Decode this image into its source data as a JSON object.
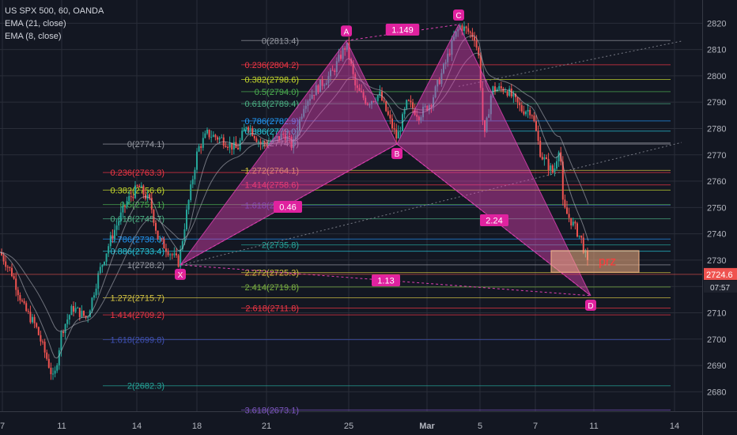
{
  "legend": {
    "title": "US SPX 500, 60, OANDA",
    "ema21": "EMA (21, close)",
    "ema8": "EMA (8, close)"
  },
  "colors": {
    "background": "#131722",
    "grid": "#2a2e39",
    "pattern_fill": "#e040b4",
    "pattern_label_bg": "#e0229f",
    "up_candle": "#26a69a",
    "down_candle": "#ef5350",
    "prz_box": "#f4b183",
    "prz_text": "#ff3b3b",
    "axis_text": "#b2b5be"
  },
  "last_price": {
    "value": "2724.6",
    "countdown": "07:57"
  },
  "prz_label": "prz",
  "chart_data": {
    "type": "candlestick",
    "title": "US SPX 500, 60, OANDA",
    "xlabel": "",
    "ylabel": "",
    "ylim": [
      2672,
      2824
    ],
    "x_ticks": [
      "7",
      "11",
      "14",
      "18",
      "21",
      "25",
      "Mar",
      "5",
      "7",
      "11",
      "14"
    ],
    "y_ticks": [
      2680,
      2690,
      2700,
      2710,
      2720,
      2730,
      2740,
      2750,
      2760,
      2770,
      2780,
      2790,
      2800,
      2810,
      2820
    ],
    "series": [
      {
        "name": "EMA (21, close)"
      },
      {
        "name": "EMA (8, close)"
      }
    ],
    "harmonic_pattern": {
      "points": [
        {
          "label": "X",
          "price": 2728.2
        },
        {
          "label": "A",
          "price": 2813.4
        },
        {
          "label": "B",
          "price": 2774.1
        },
        {
          "label": "C",
          "price": 2819.5
        },
        {
          "label": "D",
          "price": 2716.5
        }
      ],
      "ratios": [
        {
          "label": "1.149"
        },
        {
          "label": "0.46"
        },
        {
          "label": "2.24"
        },
        {
          "label": "1.13"
        }
      ]
    },
    "fib_sets": [
      {
        "name": "upper-fib",
        "levels": [
          {
            "text": "0(2813.4)",
            "price": 2813.4,
            "color": "#9598a1"
          },
          {
            "text": "0.236(2804.2)",
            "price": 2804.2,
            "color": "#f23645"
          },
          {
            "text": "0.382(2798.6)",
            "price": 2798.6,
            "color": "#c5d82d"
          },
          {
            "text": "0.5(2794.0)",
            "price": 2794.0,
            "color": "#4caf50"
          },
          {
            "text": "0.618(2789.4)",
            "price": 2789.4,
            "color": "#4caf83"
          },
          {
            "text": "0.786(2782.9)",
            "price": 2782.9,
            "color": "#2196f3"
          },
          {
            "text": "0.886(2779.0)",
            "price": 2779.0,
            "color": "#26c6da"
          },
          {
            "text": "1(2774.5)",
            "price": 2774.5,
            "color": "#9598a1"
          },
          {
            "text": "1.272(2764.1)",
            "price": 2764.1,
            "color": "#d4c341"
          },
          {
            "text": "1.414(2758.6)",
            "price": 2758.6,
            "color": "#f23645"
          },
          {
            "text": "1.618(2750.8)",
            "price": 2750.8,
            "color": "#3f51b5"
          },
          {
            "text": "2(2735.8)",
            "price": 2735.8,
            "color": "#26a69a"
          },
          {
            "text": "2.272(2725.3)",
            "price": 2725.3,
            "color": "#d4c341"
          },
          {
            "text": "2.414(2719.8)",
            "price": 2719.8,
            "color": "#7cb342"
          },
          {
            "text": "2.618(2711.8)",
            "price": 2711.8,
            "color": "#f23645"
          },
          {
            "text": "3.618(2673.1)",
            "price": 2673.1,
            "color": "#7e57c2"
          }
        ]
      },
      {
        "name": "lower-fib",
        "levels": [
          {
            "text": "0(2774.1)",
            "price": 2774.1,
            "color": "#9598a1"
          },
          {
            "text": "0.236(2763.3)",
            "price": 2763.3,
            "color": "#f23645"
          },
          {
            "text": "0.382(2756.6)",
            "price": 2756.6,
            "color": "#c5d82d"
          },
          {
            "text": "0.5(2751.1)",
            "price": 2751.1,
            "color": "#4caf50"
          },
          {
            "text": "0.618(2745.7)",
            "price": 2745.7,
            "color": "#4caf83"
          },
          {
            "text": "0.786(2738.0)",
            "price": 2738.0,
            "color": "#2196f3"
          },
          {
            "text": "0.886(2733.4)",
            "price": 2733.4,
            "color": "#26c6da"
          },
          {
            "text": "1(2728.2)",
            "price": 2728.2,
            "color": "#9598a1"
          },
          {
            "text": "1.272(2715.7)",
            "price": 2715.7,
            "color": "#d4c341"
          },
          {
            "text": "1.414(2709.2)",
            "price": 2709.2,
            "color": "#f23645"
          },
          {
            "text": "1.618(2699.8)",
            "price": 2699.8,
            "color": "#3f51b5"
          },
          {
            "text": "2(2682.3)",
            "price": 2682.3,
            "color": "#26a69a"
          }
        ]
      }
    ],
    "prz": {
      "price_low": 2725.4,
      "price_high": 2733.6
    }
  }
}
